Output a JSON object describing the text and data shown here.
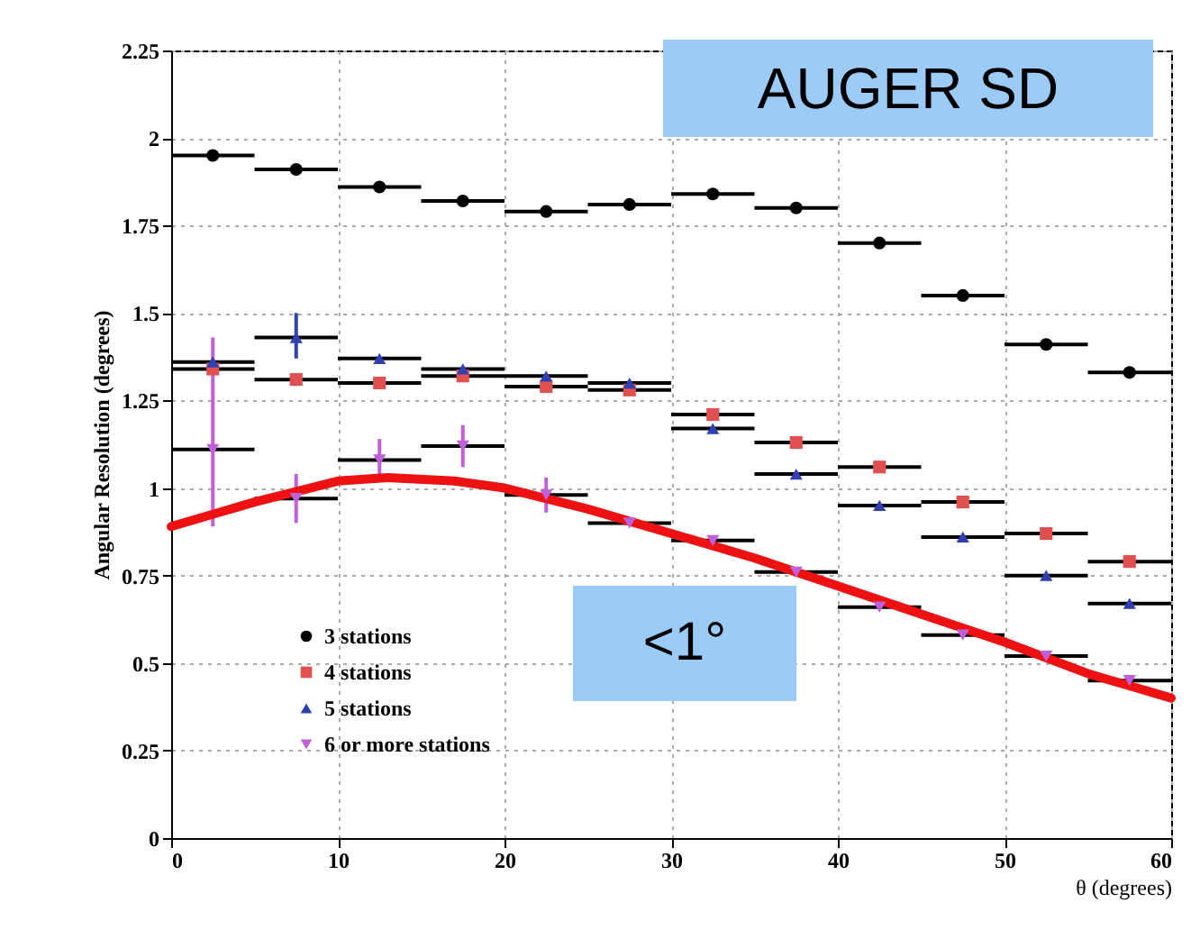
{
  "chart_data": {
    "type": "scatter",
    "xlabel": "θ (degrees)",
    "ylabel": "Angular Resolution (degrees)",
    "x": [
      2.5,
      7.5,
      12.5,
      17.5,
      22.5,
      27.5,
      32.5,
      37.5,
      42.5,
      47.5,
      52.5,
      57.5
    ],
    "xlim": [
      0,
      60
    ],
    "xticks": [
      0,
      10,
      20,
      30,
      40,
      50,
      60
    ],
    "ylim": [
      0,
      2.25
    ],
    "yticks": [
      0,
      0.25,
      0.5,
      0.75,
      1,
      1.25,
      1.5,
      1.75,
      2,
      2.25
    ],
    "grid": true,
    "legend": "bottom left",
    "annotations": [
      "AUGER SD",
      "<1°"
    ],
    "series": [
      {
        "name": "3 stations",
        "color": "#000000",
        "marker": "circle",
        "values": [
          1.95,
          1.91,
          1.86,
          1.82,
          1.79,
          1.81,
          1.84,
          1.8,
          1.7,
          1.55,
          1.41,
          1.33
        ],
        "xerrors": [
          2.5,
          2.5,
          2.5,
          2.5,
          2.5,
          2.5,
          2.5,
          2.5,
          2.5,
          2.5,
          2.5,
          2.5
        ]
      },
      {
        "name": "4 stations",
        "color": "#e05050",
        "marker": "square",
        "values": [
          1.34,
          1.31,
          1.3,
          1.32,
          1.29,
          1.28,
          1.21,
          1.13,
          1.06,
          0.96,
          0.87,
          0.79
        ],
        "xerrors": [
          2.5,
          2.5,
          2.5,
          2.5,
          2.5,
          2.5,
          2.5,
          2.5,
          2.5,
          2.5,
          2.5,
          2.5
        ]
      },
      {
        "name": "5 stations",
        "color": "#3040b0",
        "marker": "triangle",
        "values": [
          1.36,
          1.43,
          1.37,
          1.34,
          1.32,
          1.3,
          1.17,
          1.04,
          0.95,
          0.86,
          0.75,
          0.67
        ],
        "xerrors": [
          2.5,
          2.5,
          2.5,
          2.5,
          2.5,
          2.5,
          2.5,
          2.5,
          2.5,
          2.5,
          2.5,
          2.5
        ],
        "errors": [
          null,
          [
            1.37,
            1.5
          ],
          null,
          null,
          null,
          null,
          null,
          null,
          null,
          null,
          null,
          null
        ]
      },
      {
        "name": "6 or more stations",
        "color": "#c060d8",
        "marker": "triangle-down",
        "values": [
          1.11,
          0.97,
          1.08,
          1.12,
          0.98,
          0.9,
          0.85,
          0.76,
          0.66,
          0.58,
          0.52,
          0.45
        ],
        "xerrors": [
          2.5,
          2.5,
          2.5,
          2.5,
          2.5,
          2.5,
          2.5,
          2.5,
          2.5,
          2.5,
          2.5,
          2.5
        ],
        "errors": [
          [
            0.89,
            1.43
          ],
          0.07,
          0.06,
          0.06,
          0.05,
          null,
          null,
          null,
          null,
          null,
          null,
          null
        ]
      },
      {
        "type": "line",
        "color": "#ee1111",
        "x": [
          0,
          5,
          10,
          13,
          17,
          20,
          25,
          30,
          35,
          40,
          45,
          50,
          55,
          60
        ],
        "values": [
          0.89,
          0.96,
          1.02,
          1.03,
          1.02,
          1.0,
          0.94,
          0.87,
          0.8,
          0.72,
          0.64,
          0.56,
          0.47,
          0.4
        ]
      }
    ]
  }
}
